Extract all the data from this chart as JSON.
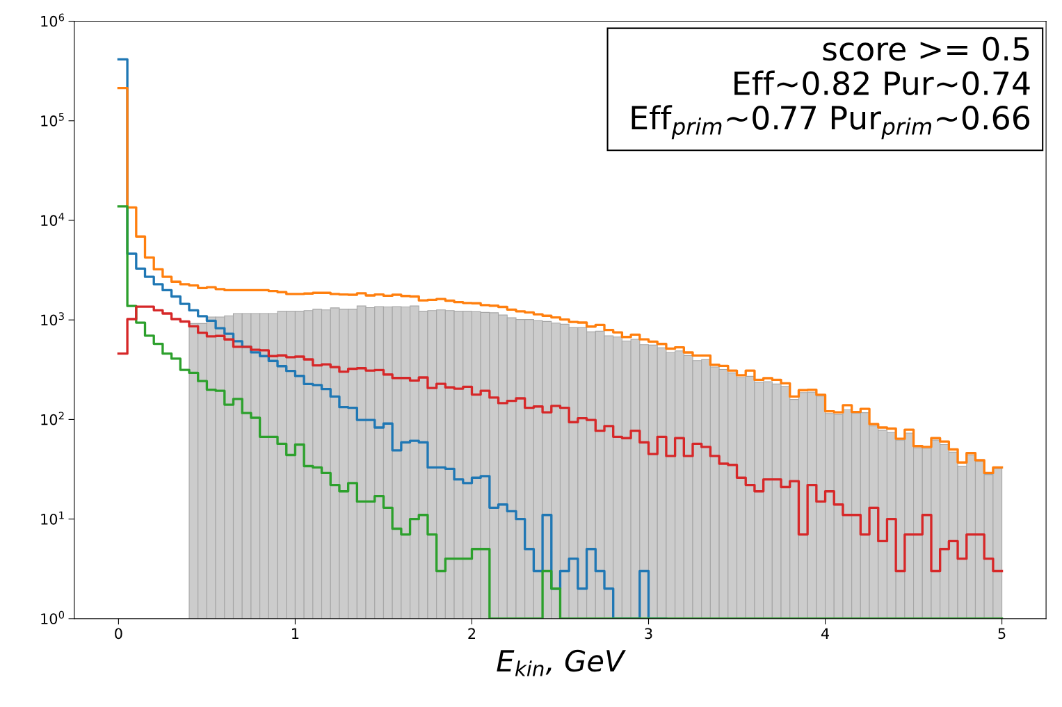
{
  "chart_data": {
    "type": "histogram",
    "xlabel": "E$_{kin}$, GeV",
    "bins": [
      0,
      0.05,
      0.1,
      0.15,
      0.2,
      0.25,
      0.3,
      0.35,
      0.4,
      0.45,
      0.5,
      0.55,
      0.6,
      0.65,
      0.7,
      0.75,
      0.8,
      0.85,
      0.9,
      0.95,
      1,
      1.05,
      1.1,
      1.15,
      1.2,
      1.25,
      1.3,
      1.35,
      1.4,
      1.45,
      1.5,
      1.55,
      1.6,
      1.65,
      1.7,
      1.75,
      1.8,
      1.85,
      1.9,
      1.95,
      2,
      2.05,
      2.1,
      2.15,
      2.2,
      2.25,
      2.3,
      2.35,
      2.4,
      2.45,
      2.5,
      2.55,
      2.6,
      2.65,
      2.7,
      2.75,
      2.8,
      2.85,
      2.9,
      2.95,
      3,
      3.05,
      3.1,
      3.15,
      3.2,
      3.25,
      3.3,
      3.35,
      3.4,
      3.45,
      3.5,
      3.55,
      3.6,
      3.65,
      3.7,
      3.75,
      3.8,
      3.85,
      3.9,
      3.95,
      4,
      4.05,
      4.1,
      4.15,
      4.2,
      4.25,
      4.3,
      4.35,
      4.4,
      4.45,
      4.5,
      4.55,
      4.6,
      4.65,
      4.7,
      4.75,
      4.8,
      4.85,
      4.9,
      4.95,
      5
    ],
    "series": [
      {
        "color": "#cccccc",
        "values": [
          null,
          null,
          null,
          null,
          null,
          null,
          null,
          null,
          920,
          920,
          1070,
          1070,
          1100,
          1160,
          1160,
          1160,
          1160,
          1160,
          1220,
          1220,
          1220,
          1240,
          1280,
          1260,
          1320,
          1280,
          1280,
          1380,
          1330,
          1360,
          1350,
          1360,
          1350,
          1380,
          1220,
          1240,
          1260,
          1240,
          1220,
          1220,
          1210,
          1190,
          1180,
          1120,
          1050,
          1010,
          1010,
          981,
          966,
          930,
          905,
          835,
          835,
          759,
          771,
          693,
          674,
          615,
          639,
          565,
          559,
          524,
          471,
          489,
          439,
          390,
          399,
          336,
          318,
          294,
          264,
          271,
          237,
          240,
          227,
          215,
          159,
          186,
          188,
          172,
          115,
          112,
          125,
          116,
          117,
          86,
          78,
          74,
          62,
          73,
          52,
          51,
          62,
          56,
          47,
          34,
          44,
          38,
          28,
          32
        ]
      },
      {
        "type": "step",
        "color": "#1f77b4",
        "x": [
          0,
          0.05,
          0.1,
          0.15,
          0.2,
          0.25,
          0.3,
          0.35,
          0.4,
          0.45,
          0.5,
          0.55,
          0.6,
          0.65,
          0.7,
          0.75,
          0.8,
          0.85,
          0.9,
          0.95,
          1,
          1.05,
          1.1,
          1.15,
          1.2,
          1.25,
          1.3,
          1.35,
          1.4,
          1.45,
          1.5,
          1.55,
          1.6,
          1.65,
          1.7,
          1.75,
          1.8,
          1.85,
          1.9,
          1.95,
          2,
          2.05,
          2.1,
          2.15,
          2.2,
          2.25,
          2.3,
          2.35,
          2.4,
          2.45,
          2.5,
          2.55,
          2.6,
          2.65,
          2.7,
          2.75,
          2.8,
          2.85,
          2.9,
          2.95,
          3,
          3.05,
          3.1
        ],
        "values": [
          414000,
          4620,
          3280,
          2710,
          2280,
          1990,
          1720,
          1450,
          1250,
          1090,
          980,
          826,
          725,
          611,
          537,
          472,
          433,
          387,
          343,
          307,
          274,
          227,
          222,
          202,
          170,
          133,
          131,
          99,
          99,
          83,
          91,
          49,
          59,
          61,
          59,
          33,
          33,
          32,
          25,
          23,
          26,
          27,
          13,
          14,
          12,
          10,
          5,
          3,
          11,
          2,
          3,
          4,
          2,
          5,
          3,
          2,
          1,
          1,
          1,
          3,
          1,
          1,
          1
        ]
      },
      {
        "type": "step",
        "color": "#ff7f0e",
        "x": [
          0,
          0.05,
          0.1,
          0.15,
          0.2,
          0.25,
          0.3,
          0.35,
          0.4,
          0.45,
          0.5,
          0.55,
          0.6,
          0.65,
          0.7,
          0.75,
          0.8,
          0.85,
          0.9,
          0.95,
          1,
          1.05,
          1.1,
          1.15,
          1.2,
          1.25,
          1.3,
          1.35,
          1.4,
          1.45,
          1.5,
          1.55,
          1.6,
          1.65,
          1.7,
          1.75,
          1.8,
          1.85,
          1.9,
          1.95,
          2,
          2.05,
          2.1,
          2.15,
          2.2,
          2.25,
          2.3,
          2.35,
          2.4,
          2.45,
          2.5,
          2.55,
          2.6,
          2.65,
          2.7,
          2.75,
          2.8,
          2.85,
          2.9,
          2.95,
          3,
          3.05,
          3.1,
          3.15,
          3.2,
          3.25,
          3.3,
          3.35,
          3.4,
          3.45,
          3.5,
          3.55,
          3.6,
          3.65,
          3.7,
          3.75,
          3.8,
          3.85,
          3.9,
          3.95,
          4,
          4.05,
          4.1,
          4.15,
          4.2,
          4.25,
          4.3,
          4.35,
          4.4,
          4.45,
          4.5,
          4.55,
          4.6,
          4.65,
          4.7,
          4.75,
          4.8,
          4.85,
          4.9,
          4.95,
          5
        ],
        "values": [
          213000,
          13500,
          6880,
          4240,
          3220,
          2710,
          2420,
          2280,
          2220,
          2090,
          2130,
          2040,
          1990,
          1990,
          1990,
          1990,
          1990,
          1950,
          1900,
          1820,
          1820,
          1840,
          1870,
          1870,
          1820,
          1800,
          1790,
          1850,
          1760,
          1800,
          1750,
          1790,
          1740,
          1720,
          1570,
          1590,
          1620,
          1560,
          1510,
          1480,
          1470,
          1410,
          1390,
          1350,
          1270,
          1220,
          1190,
          1140,
          1100,
          1060,
          1010,
          955,
          940,
          858,
          891,
          792,
          750,
          674,
          711,
          639,
          606,
          574,
          515,
          530,
          471,
          439,
          439,
          354,
          345,
          310,
          278,
          310,
          250,
          260,
          250,
          231,
          170,
          197,
          199,
          177,
          121,
          118,
          139,
          119,
          128,
          90,
          83,
          81,
          64,
          79,
          54,
          53,
          65,
          60,
          50,
          37,
          46,
          39,
          29,
          33,
          33
        ]
      },
      {
        "type": "step",
        "color": "#2ca02c",
        "x": [
          0,
          0.05,
          0.1,
          0.15,
          0.2,
          0.25,
          0.3,
          0.35,
          0.4,
          0.45,
          0.5,
          0.55,
          0.6,
          0.65,
          0.7,
          0.75,
          0.8,
          0.85,
          0.9,
          0.95,
          1,
          1.05,
          1.1,
          1.15,
          1.2,
          1.25,
          1.3,
          1.35,
          1.4,
          1.45,
          1.5,
          1.55,
          1.6,
          1.65,
          1.7,
          1.75,
          1.8,
          1.85,
          1.9,
          1.95,
          2,
          2.05,
          2.1,
          2.15,
          2.2,
          2.25,
          2.3,
          2.35,
          2.4,
          2.45,
          2.5,
          2.55,
          2.6,
          2.65,
          2.7,
          2.75,
          2.8,
          2.85,
          2.9,
          2.95,
          3,
          3.05,
          3.1,
          3.15,
          3.2,
          3.25,
          3.3,
          3.35,
          3.4,
          3.45,
          3.5,
          3.55,
          3.6,
          3.65,
          3.7,
          3.75,
          3.8,
          3.85,
          3.9,
          3.95,
          4,
          4.05,
          4.1,
          4.15,
          4.2,
          4.25,
          4.3,
          4.35,
          4.4,
          4.45,
          4.5,
          4.55,
          4.6,
          4.65,
          4.7,
          4.75,
          4.8,
          4.85,
          4.9,
          4.95,
          5
        ],
        "values": [
          13800,
          1380,
          939,
          695,
          575,
          459,
          408,
          315,
          294,
          243,
          199,
          194,
          141,
          161,
          116,
          104,
          67,
          67,
          57,
          44,
          56,
          34,
          33,
          29,
          22,
          19,
          23,
          15,
          15,
          17,
          13,
          8,
          7,
          10,
          11,
          7,
          3,
          4,
          4,
          4,
          5,
          5,
          1,
          1,
          1,
          1,
          1,
          1,
          3,
          2,
          1,
          1,
          1,
          1,
          1,
          1,
          1,
          1,
          1,
          1,
          1,
          1,
          1,
          1,
          1,
          1,
          1,
          1,
          1,
          1,
          1,
          1,
          1,
          1,
          1,
          1,
          1,
          1,
          1,
          1,
          1,
          1,
          1,
          1,
          1,
          1,
          1,
          1,
          1,
          1,
          1,
          1,
          1,
          1,
          1,
          1,
          1,
          1,
          1,
          1,
          1
        ]
      },
      {
        "type": "step",
        "color": "#d62728",
        "x": [
          0,
          0.05,
          0.1,
          0.15,
          0.2,
          0.25,
          0.3,
          0.35,
          0.4,
          0.45,
          0.5,
          0.55,
          0.6,
          0.65,
          0.7,
          0.75,
          0.8,
          0.85,
          0.9,
          0.95,
          1,
          1.05,
          1.1,
          1.15,
          1.2,
          1.25,
          1.3,
          1.35,
          1.4,
          1.45,
          1.5,
          1.55,
          1.6,
          1.65,
          1.7,
          1.75,
          1.8,
          1.85,
          1.9,
          1.95,
          2,
          2.05,
          2.1,
          2.15,
          2.2,
          2.25,
          2.3,
          2.35,
          2.4,
          2.45,
          2.5,
          2.55,
          2.6,
          2.65,
          2.7,
          2.75,
          2.8,
          2.85,
          2.9,
          2.95,
          3,
          3.05,
          3.1,
          3.15,
          3.2,
          3.25,
          3.3,
          3.35,
          3.4,
          3.45,
          3.5,
          3.55,
          3.6,
          3.65,
          3.7,
          3.75,
          3.8,
          3.85,
          3.9,
          3.95,
          4,
          4.05,
          4.1,
          4.15,
          4.2,
          4.25,
          4.3,
          4.35,
          4.4,
          4.45,
          4.5,
          4.55,
          4.6,
          4.65,
          4.7,
          4.75,
          4.8,
          4.85,
          4.9,
          4.95,
          5
        ],
        "values": [
          459,
          1020,
          1360,
          1360,
          1250,
          1160,
          1020,
          964,
          862,
          743,
          683,
          690,
          637,
          537,
          537,
          501,
          495,
          433,
          440,
          422,
          428,
          401,
          349,
          358,
          336,
          302,
          323,
          327,
          310,
          313,
          283,
          261,
          261,
          246,
          264,
          207,
          228,
          210,
          204,
          213,
          178,
          194,
          166,
          146,
          154,
          163,
          131,
          135,
          118,
          137,
          131,
          94,
          103,
          99,
          77,
          86,
          67,
          65,
          77,
          59,
          45,
          67,
          43,
          65,
          43,
          57,
          53,
          43,
          36,
          35,
          26,
          22,
          19,
          25,
          25,
          21,
          24,
          7,
          22,
          15,
          19,
          14,
          11,
          11,
          7,
          13,
          6,
          10,
          3,
          7,
          7,
          11,
          3,
          5,
          6,
          4,
          7,
          7,
          4,
          3,
          3
        ]
      }
    ],
    "log": "y",
    "xlim": [
      -0.25,
      5.25
    ],
    "xticks": [
      0,
      1,
      2,
      3,
      4,
      5
    ],
    "ylim": [
      1,
      1000000
    ],
    "yticks": [
      {
        "value": 1,
        "label": "10$^{0}$"
      },
      {
        "value": 10,
        "label": "10$^{1}$"
      },
      {
        "value": 100,
        "label": "10$^{2}$"
      },
      {
        "value": 1000,
        "label": "10$^{3}$"
      },
      {
        "value": 10000,
        "label": "10$^{4}$"
      },
      {
        "value": 100000,
        "label": "10$^{5}$"
      },
      {
        "value": 1000000,
        "label": "10$^{6}$"
      }
    ],
    "annotations": [
      "score >= 0.5",
      " Eff~0.82 Pur~0.74",
      " Eff$_{prim}$~0.77 Pur$_{prim}$~0.66"
    ],
    "grid": false
  }
}
